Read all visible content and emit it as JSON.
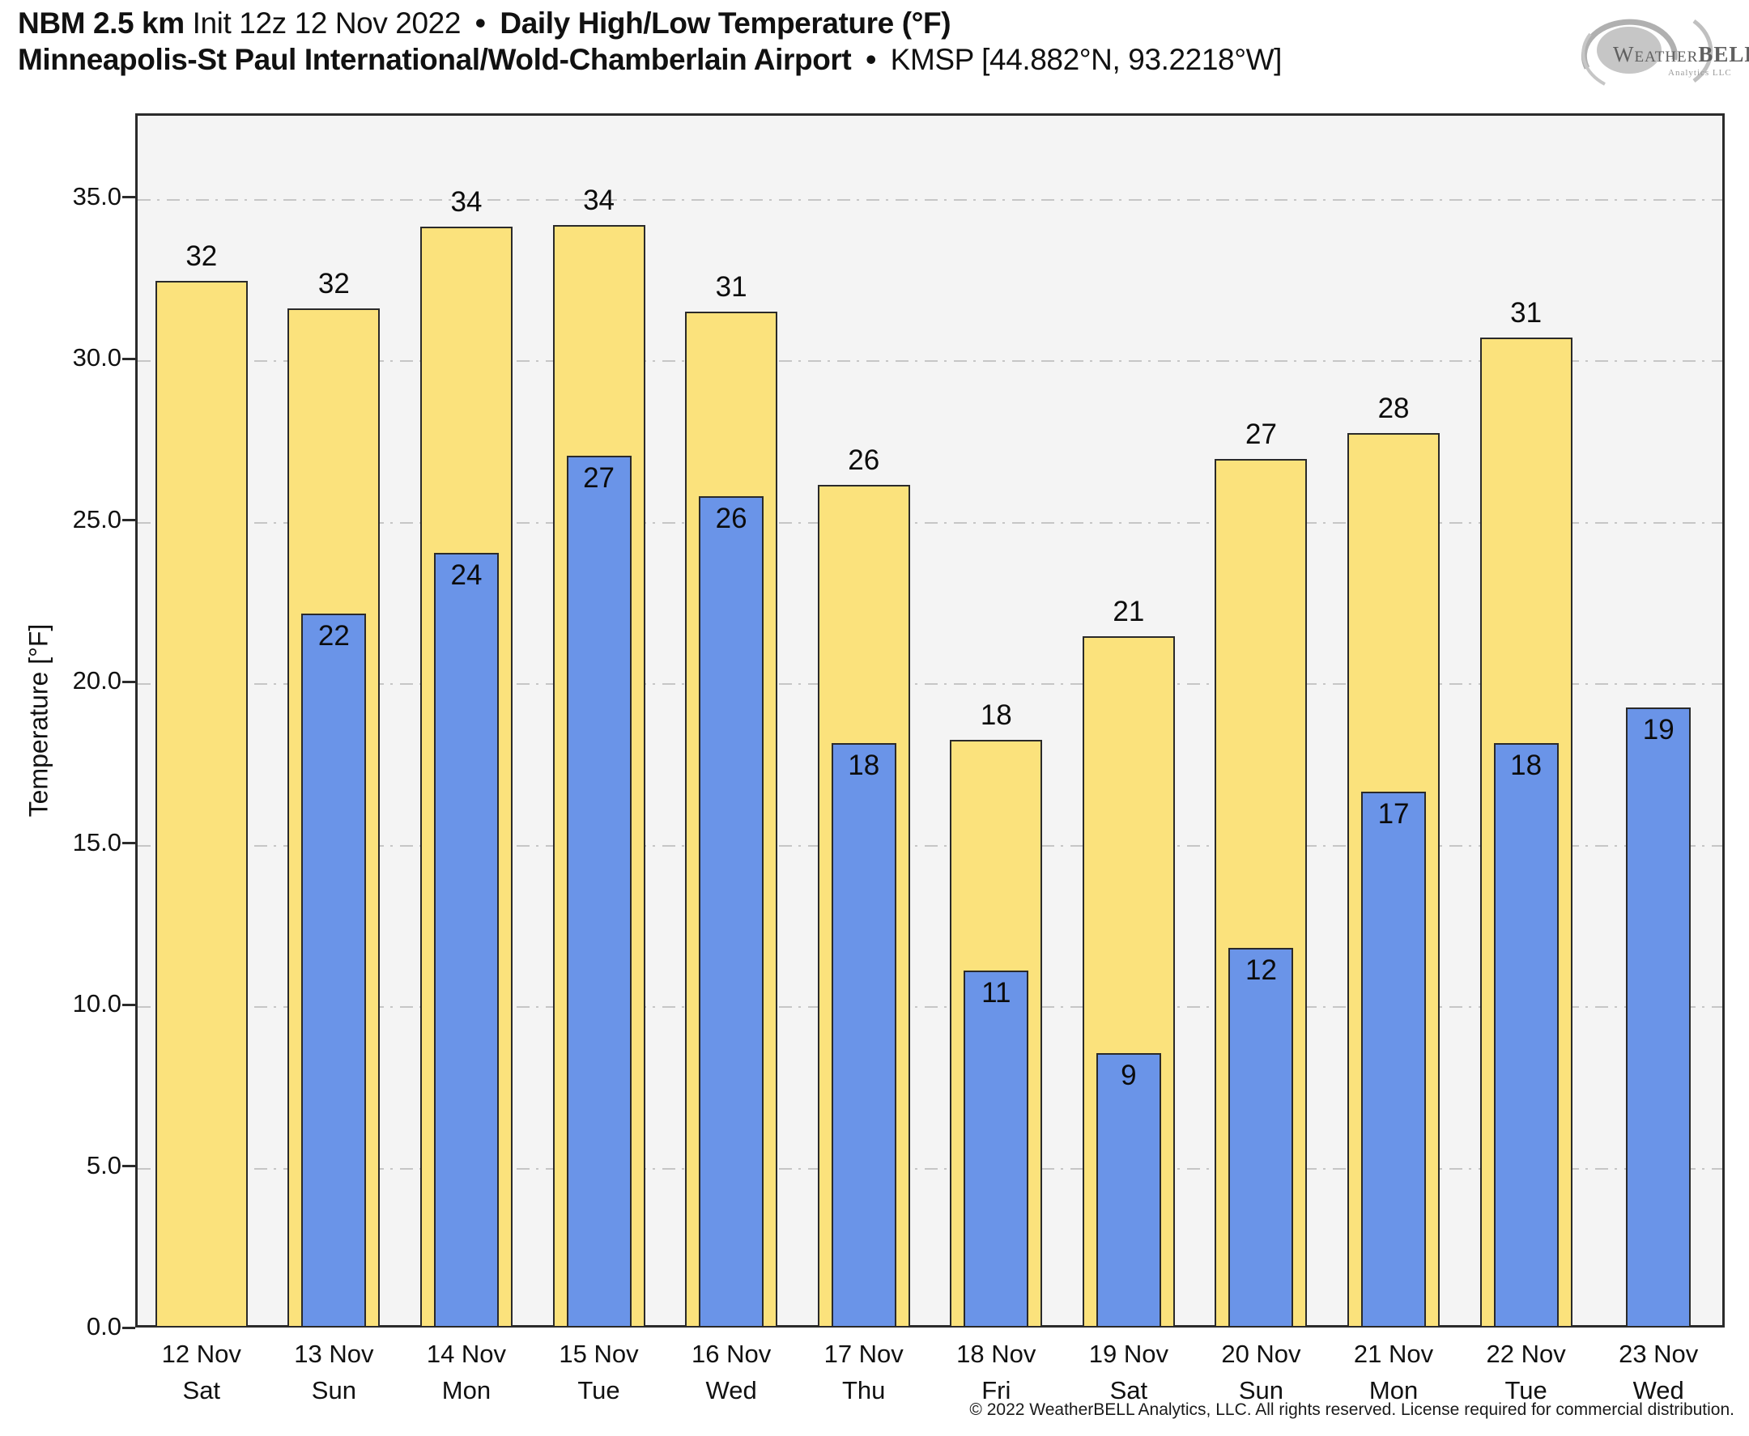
{
  "header": {
    "title_bold_left": "NBM 2.5 km",
    "title_regular": "Init 12z 12 Nov 2022",
    "title_separator": "•",
    "title_bold_right": "Daily High/Low Temperature (°F)",
    "subtitle_bold": "Minneapolis-St Paul International/Wold-Chamberlain Airport",
    "subtitle_separator": "•",
    "subtitle_regular": "KMSP [44.882°N, 93.2218°W]"
  },
  "logo": {
    "brand_prefix": "Weather",
    "brand_suffix": "BELL",
    "subtext": "Analytics LLC"
  },
  "footer": {
    "copyright": "© 2022 WeatherBELL Analytics, LLC. All rights reserved. License required for commercial distribution."
  },
  "chart_data": {
    "type": "bar",
    "title": "Daily High/Low Temperature (°F)",
    "ylabel": "Temperature [°F]",
    "ylim": [
      0,
      37.6
    ],
    "yticks": [
      0,
      5,
      10,
      15,
      20,
      25,
      30,
      35
    ],
    "ytick_labels": [
      "0.0",
      "5.0",
      "10.0",
      "15.0",
      "20.0",
      "25.0",
      "30.0",
      "35.0"
    ],
    "grid": "horizontal dash-dot gridlines at each 5°F",
    "legend": "none (yellow = daily high, blue = daily low)",
    "plot_background": "#f4f4f4",
    "categories": [
      "12 Nov",
      "13 Nov",
      "14 Nov",
      "15 Nov",
      "16 Nov",
      "17 Nov",
      "18 Nov",
      "19 Nov",
      "20 Nov",
      "21 Nov",
      "22 Nov",
      "23 Nov"
    ],
    "weekdays": [
      "Sat",
      "Sun",
      "Mon",
      "Tue",
      "Wed",
      "Thu",
      "Fri",
      "Sat",
      "Sun",
      "Mon",
      "Tue",
      "Wed"
    ],
    "series": [
      {
        "name": "Daily High",
        "color": "#fbe27c",
        "labels": [
          32,
          32,
          34,
          34,
          31,
          26,
          18,
          21,
          27,
          28,
          31,
          null
        ],
        "bar_tops": [
          32.4,
          31.55,
          34.1,
          34.15,
          31.45,
          26.1,
          18.2,
          21.4,
          26.9,
          27.7,
          30.65,
          null
        ]
      },
      {
        "name": "Daily Low",
        "color": "#6a94e8",
        "labels": [
          null,
          22,
          24,
          27,
          26,
          18,
          11,
          9,
          12,
          17,
          18,
          19
        ],
        "bar_tops": [
          null,
          22.1,
          24.0,
          27.0,
          25.75,
          18.1,
          11.05,
          8.5,
          11.75,
          16.6,
          18.1,
          19.2
        ]
      }
    ]
  }
}
